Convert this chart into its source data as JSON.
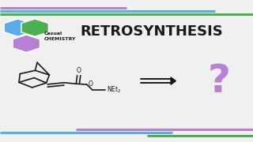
{
  "bg_color": "#f0f0f0",
  "title_text": "RETROSYNTHESIS",
  "title_color": "#1a1a1a",
  "title_fontsize": 13,
  "logo_hex_colors": [
    "#5aade8",
    "#4caf50",
    "#b87fd4"
  ],
  "logo_text": "Casual\nCHEMISTRY",
  "logo_text_color": "#1a1a1a",
  "stripe_purple": "#b87fd4",
  "stripe_blue": "#5aade8",
  "stripe_green": "#4caf50",
  "arrow_color": "#1a1a1a",
  "question_color": "#b87fd4",
  "question_fontsize": 36
}
